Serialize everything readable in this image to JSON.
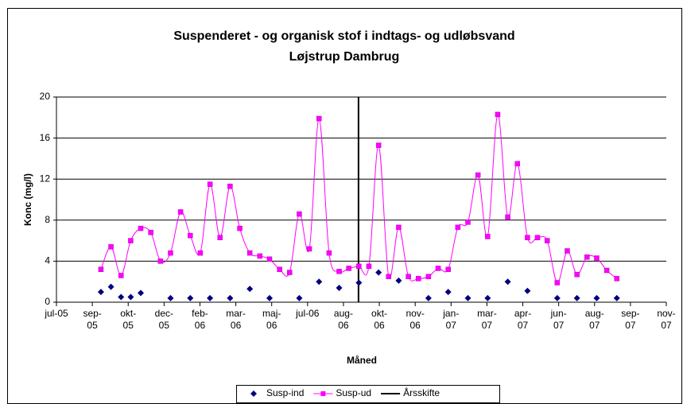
{
  "chart_data": {
    "type": "line",
    "title": "Suspenderet - og organisk stof i indtags- og udløbsvand",
    "subtitle": "Løjstrup Dambrug",
    "x_label": "Måned",
    "y_label": "Konc (mg/l)",
    "xlim": [
      0,
      17
    ],
    "xticks": [
      {
        "value": 0,
        "label": "jul-05"
      },
      {
        "value": 1,
        "label": "sep-05"
      },
      {
        "value": 2,
        "label": "okt-05"
      },
      {
        "value": 3,
        "label": "dec-05"
      },
      {
        "value": 4,
        "label": "feb-06"
      },
      {
        "value": 5,
        "label": "mar-06"
      },
      {
        "value": 6,
        "label": "maj-06"
      },
      {
        "value": 7,
        "label": "jul-06"
      },
      {
        "value": 8,
        "label": "aug-06"
      },
      {
        "value": 9,
        "label": "okt-06"
      },
      {
        "value": 10,
        "label": "nov-06"
      },
      {
        "value": 11,
        "label": "jan-07"
      },
      {
        "value": 12,
        "label": "mar-07"
      },
      {
        "value": 13,
        "label": "apr-07"
      },
      {
        "value": 14,
        "label": "jun-07"
      },
      {
        "value": 15,
        "label": "aug-07"
      },
      {
        "value": 16,
        "label": "sep-07"
      },
      {
        "value": 17,
        "label": "nov-07"
      }
    ],
    "ylim": [
      0,
      20
    ],
    "yticks": [
      0,
      4,
      8,
      12,
      16,
      20
    ],
    "grid": true,
    "legend": "bottom",
    "x": [
      1.24,
      1.52,
      1.8,
      2.07,
      2.35,
      2.63,
      2.9,
      3.18,
      3.46,
      3.73,
      4.01,
      4.28,
      4.56,
      4.84,
      5.11,
      5.39,
      5.67,
      5.94,
      6.22,
      6.5,
      6.77,
      7.05,
      7.32,
      7.6,
      7.88,
      8.15,
      8.43,
      8.71,
      8.98,
      9.26,
      9.54,
      9.81,
      10.09,
      10.37,
      10.64,
      10.92,
      11.19,
      11.47,
      11.75,
      12.02,
      12.3,
      12.58,
      12.85,
      13.13,
      13.41,
      13.68,
      13.96,
      14.24,
      14.51,
      14.79,
      15.06,
      15.34,
      15.62
    ],
    "series": [
      {
        "name": "Susp-ind",
        "color": "#000080",
        "marker": "diamond",
        "line": false,
        "values": [
          1.0,
          1.5,
          0.5,
          0.5,
          0.9,
          null,
          null,
          0.4,
          null,
          0.4,
          null,
          0.4,
          null,
          0.4,
          null,
          1.3,
          null,
          0.4,
          null,
          null,
          0.4,
          null,
          2.0,
          null,
          1.4,
          null,
          1.9,
          null,
          2.9,
          null,
          2.1,
          null,
          null,
          0.4,
          null,
          1.0,
          null,
          0.4,
          null,
          0.4,
          null,
          2.0,
          null,
          1.1,
          null,
          null,
          0.4,
          null,
          0.4,
          null,
          0.4,
          null,
          0.4
        ]
      },
      {
        "name": "Susp-ud",
        "color": "#ff00ff",
        "marker": "square",
        "line": true,
        "values": [
          3.2,
          5.4,
          2.6,
          6.0,
          7.2,
          6.8,
          4.0,
          4.8,
          8.8,
          6.5,
          4.8,
          11.5,
          6.3,
          11.3,
          7.2,
          4.8,
          4.5,
          4.2,
          3.2,
          2.9,
          8.6,
          5.2,
          17.9,
          4.8,
          3.0,
          3.3,
          3.5,
          3.5,
          15.3,
          2.5,
          7.3,
          2.5,
          2.3,
          2.5,
          3.3,
          3.2,
          7.3,
          7.8,
          12.4,
          6.4,
          18.3,
          8.3,
          13.5,
          6.3,
          6.3,
          6.0,
          1.9,
          5.0,
          2.7,
          4.4,
          4.3,
          3.1,
          2.3
        ]
      }
    ],
    "vline": {
      "name": "Årsskifte",
      "x": 8.42,
      "color": "#000000"
    }
  }
}
